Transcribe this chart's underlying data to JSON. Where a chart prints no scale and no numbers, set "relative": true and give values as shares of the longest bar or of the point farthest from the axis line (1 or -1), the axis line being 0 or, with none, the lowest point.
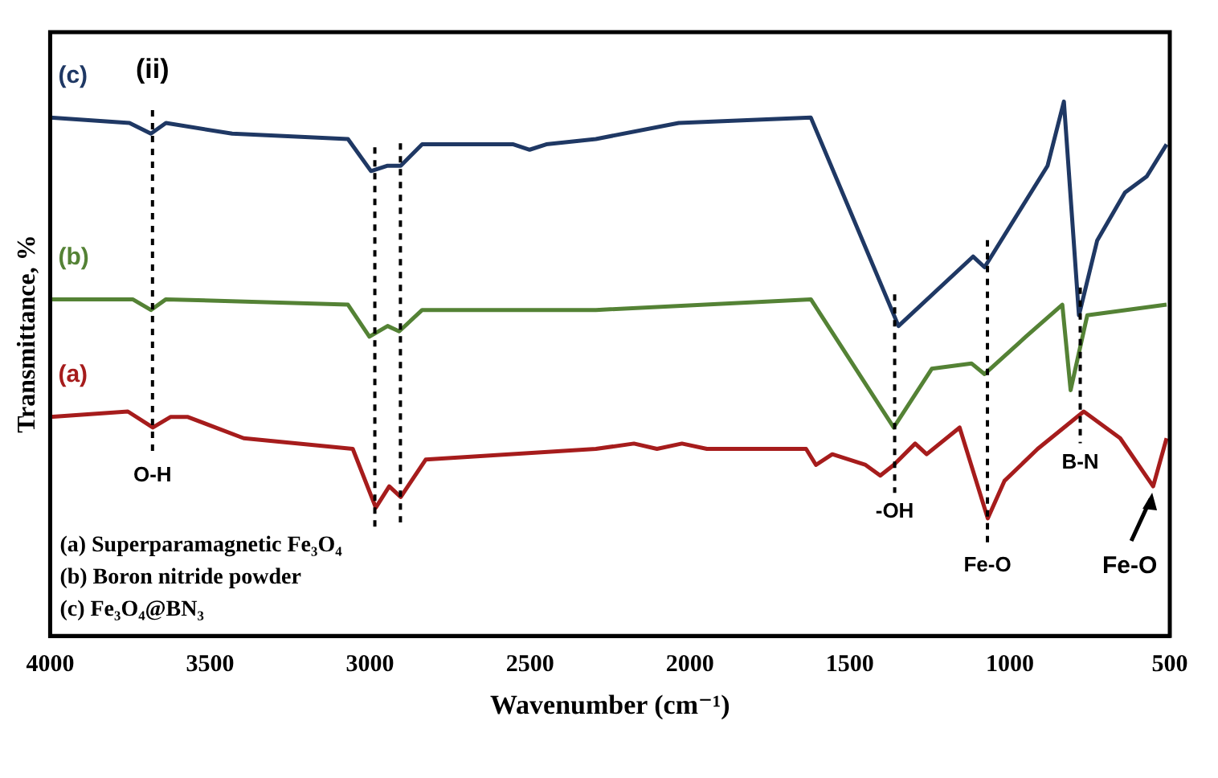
{
  "chart_data": {
    "type": "line",
    "relative": true,
    "xlabel": "Wavenumber (cm⁻¹)",
    "ylabel": "Transmittance, %",
    "xlim": [
      4000,
      500
    ],
    "xticks": [
      4000,
      3500,
      3000,
      2500,
      2000,
      1500,
      1000,
      500
    ],
    "grid": false,
    "legend": false,
    "series": [
      {
        "name": "(c)",
        "color": "#1f3864",
        "x": [
          4000,
          3752,
          3685,
          3638,
          3431,
          3069,
          2997,
          2945,
          2904,
          2837,
          2552,
          2501,
          2449,
          2294,
          2035,
          1622,
          1348,
          1115,
          1079,
          882,
          831,
          784,
          727,
          640,
          572,
          510
        ],
        "values": [
          0.97,
          0.96,
          0.94,
          0.96,
          0.94,
          0.93,
          0.87,
          0.88,
          0.88,
          0.92,
          0.92,
          0.91,
          0.92,
          0.93,
          0.96,
          0.97,
          0.58,
          0.71,
          0.69,
          0.88,
          1.0,
          0.6,
          0.74,
          0.83,
          0.86,
          0.92
        ]
      },
      {
        "name": "(b)",
        "color": "#548235",
        "x": [
          4000,
          3742,
          3685,
          3638,
          3069,
          3002,
          2945,
          2909,
          2837,
          2294,
          1622,
          1363,
          1244,
          1120,
          1079,
          950,
          836,
          810,
          758,
          510
        ],
        "values": [
          0.63,
          0.63,
          0.61,
          0.63,
          0.62,
          0.56,
          0.58,
          0.57,
          0.61,
          0.61,
          0.63,
          0.39,
          0.5,
          0.51,
          0.49,
          0.56,
          0.62,
          0.46,
          0.6,
          0.62
        ]
      },
      {
        "name": "(a)",
        "color": "#a61c1c",
        "x": [
          4000,
          3757,
          3679,
          3623,
          3571,
          3395,
          3054,
          2982,
          2940,
          2904,
          2826,
          2294,
          2175,
          2103,
          2025,
          1947,
          1637,
          1606,
          1555,
          1451,
          1405,
          1363,
          1296,
          1260,
          1157,
          1069,
          1017,
          913,
          769,
          655,
          552,
          510
        ],
        "values": [
          0.41,
          0.42,
          0.39,
          0.41,
          0.41,
          0.37,
          0.35,
          0.24,
          0.28,
          0.26,
          0.33,
          0.35,
          0.36,
          0.35,
          0.36,
          0.35,
          0.35,
          0.32,
          0.34,
          0.32,
          0.3,
          0.32,
          0.36,
          0.34,
          0.39,
          0.22,
          0.29,
          0.35,
          0.42,
          0.37,
          0.28,
          0.37
        ]
      }
    ],
    "ref_lines": [
      {
        "axis": "x",
        "value": 3680,
        "label": "O-H",
        "color": "#000000",
        "line_style": "dashed"
      },
      {
        "axis": "x",
        "value": 2985,
        "color": "#000000",
        "line_style": "dashed"
      },
      {
        "axis": "x",
        "value": 2905,
        "color": "#000000",
        "line_style": "dashed"
      },
      {
        "axis": "x",
        "value": 1360,
        "label": "-OH",
        "color": "#000000",
        "line_style": "dashed"
      },
      {
        "axis": "x",
        "value": 1070,
        "label": "Fe-O",
        "color": "#000000",
        "line_style": "dashed"
      },
      {
        "axis": "x",
        "value": 780,
        "label": "B-N",
        "color": "#000000",
        "line_style": "dashed"
      }
    ],
    "annotations": [
      "(ii)",
      "(a) Superparamagnetic Fe₃O₄",
      "(b) Boron nitride powder",
      "(c) Fe₃O₄@BN₃",
      {
        "text": "Fe-O",
        "x": 555,
        "y": 0.28
      }
    ]
  }
}
